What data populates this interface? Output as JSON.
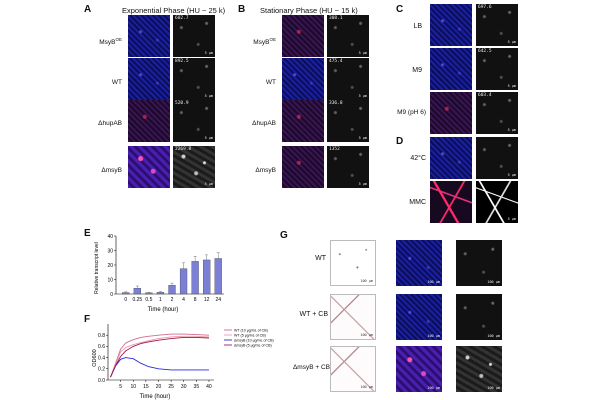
{
  "panels": {
    "A": {
      "letter": "A",
      "title": "Exponential Phase (HU ~ 25 k)",
      "rows": [
        {
          "label": "MsyB",
          "sup": "OE",
          "value": "602.7",
          "scale": "5 μm"
        },
        {
          "label": "WT",
          "sup": "",
          "value": "892.5",
          "scale": "5 μm"
        },
        {
          "label": "ΔhupAB",
          "sup": "",
          "value": "520.9",
          "scale": "5 μm"
        },
        {
          "label": "ΔmsyB",
          "sup": "",
          "value": "2269.8",
          "scale": "5 μm"
        }
      ]
    },
    "B": {
      "letter": "B",
      "title": "Stationary Phase (HU ~ 15 k)",
      "rows": [
        {
          "label": "MsyB",
          "sup": "OE",
          "value": "308.1",
          "scale": "5 μm"
        },
        {
          "label": "WT",
          "sup": "",
          "value": "475.4",
          "scale": "5 μm"
        },
        {
          "label": "ΔhupAB",
          "sup": "",
          "value": "336.8",
          "scale": "5 μm"
        },
        {
          "label": "ΔmsyB",
          "sup": "",
          "value": "1352",
          "scale": "5 μm"
        }
      ]
    },
    "C": {
      "letter": "C",
      "rows": [
        {
          "label": "LB",
          "value": "697.6",
          "scale": "5 μm"
        },
        {
          "label": "M9",
          "value": "642.5",
          "scale": "5 μm"
        },
        {
          "label": "M9 (pH 6)",
          "value": "603.4",
          "scale": "5 μm"
        }
      ]
    },
    "D": {
      "letter": "D",
      "rows": [
        {
          "label": "42°C",
          "value": "",
          "scale": "5 μm"
        },
        {
          "label": "MMC",
          "value": "",
          "scale": "5 μm"
        }
      ]
    },
    "E": {
      "letter": "E"
    },
    "F": {
      "letter": "F"
    },
    "G": {
      "letter": "G",
      "rows": [
        {
          "label": "WT",
          "scale": "100 μm"
        },
        {
          "label": "WT + CB",
          "scale": "100 μm"
        },
        {
          "label": "ΔmsyB + CB",
          "scale": "100 μm"
        }
      ]
    }
  },
  "chart_data": [
    {
      "type": "bar",
      "panel": "E",
      "categories": [
        "0",
        "0.25",
        "0.5",
        "1",
        "2",
        "4",
        "8",
        "12",
        "24"
      ],
      "values": [
        1,
        4,
        0.8,
        1.2,
        6,
        17.5,
        22.5,
        23.5,
        24.5
      ],
      "errors": [
        0.5,
        1.5,
        0.3,
        0.5,
        1.5,
        4,
        3.5,
        3.5,
        4
      ],
      "xlabel": "Time (hour)",
      "ylabel": "Relative transcript level",
      "ylim": [
        0,
        40
      ],
      "yticks": [
        0,
        10,
        20,
        30,
        40
      ],
      "color": "#7b7fd6"
    },
    {
      "type": "line",
      "panel": "F",
      "xlabel": "Time (hour)",
      "ylabel": "OD600",
      "xlim": [
        0,
        42
      ],
      "ylim": [
        0,
        1.0
      ],
      "xticks": [
        5,
        10,
        15,
        20,
        25,
        30,
        35,
        40
      ],
      "yticks": [
        0.0,
        0.2,
        0.4,
        0.6,
        0.8
      ],
      "ytick_labels": [
        "0.0",
        "0.2",
        "0.4",
        "0.6",
        "0.8"
      ],
      "legend_position": "top-right",
      "series": [
        {
          "name": "WT (10 μg/mL of CB)",
          "color": "#d36a8f",
          "x": [
            1,
            3,
            5,
            7,
            10,
            13,
            16,
            20,
            25,
            30,
            35,
            40
          ],
          "y": [
            0.05,
            0.3,
            0.55,
            0.66,
            0.72,
            0.76,
            0.78,
            0.8,
            0.82,
            0.82,
            0.81,
            0.8
          ]
        },
        {
          "name": "WT (5 μg/mL of CB)",
          "color": "#e59aa9",
          "x": [
            1,
            3,
            5,
            7,
            10,
            13,
            16,
            20,
            25,
            30,
            35,
            40
          ],
          "y": [
            0.05,
            0.28,
            0.5,
            0.58,
            0.63,
            0.67,
            0.7,
            0.74,
            0.77,
            0.78,
            0.78,
            0.77
          ]
        },
        {
          "name": "ΔmsyB (10 μg/mL of CB)",
          "color": "#2a2ad8",
          "x": [
            1,
            3,
            5,
            7,
            10,
            13,
            16,
            20,
            25,
            30,
            35,
            40
          ],
          "y": [
            0.05,
            0.25,
            0.37,
            0.4,
            0.38,
            0.3,
            0.24,
            0.2,
            0.18,
            0.18,
            0.18,
            0.18
          ]
        },
        {
          "name": "ΔmsyB (5 μg/mL of CB)",
          "color": "#a21a4a",
          "x": [
            1,
            3,
            5,
            7,
            10,
            13,
            16,
            20,
            25,
            30,
            35,
            40
          ],
          "y": [
            0.05,
            0.26,
            0.42,
            0.52,
            0.6,
            0.65,
            0.68,
            0.71,
            0.74,
            0.76,
            0.76,
            0.75
          ]
        }
      ]
    }
  ]
}
